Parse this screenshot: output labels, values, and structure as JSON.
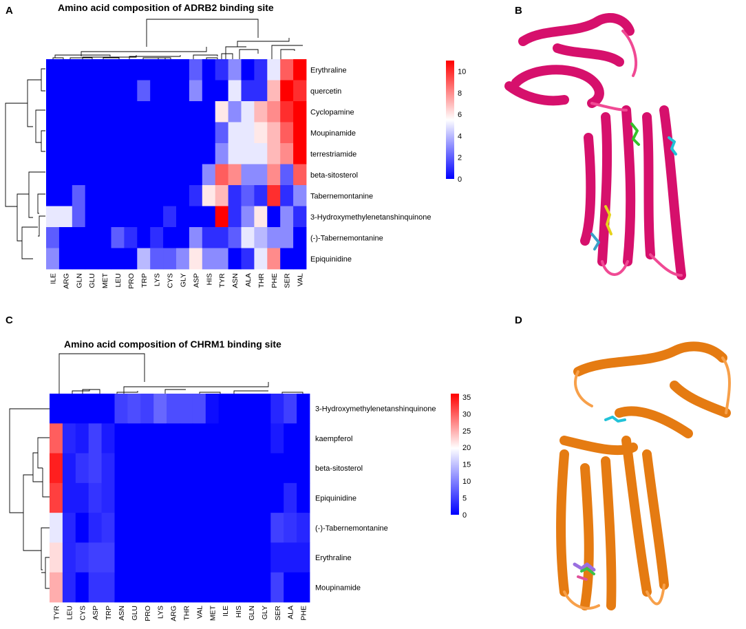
{
  "panels": {
    "A": "A",
    "B": "B",
    "C": "C",
    "D": "D"
  },
  "chart_data": [
    {
      "type": "heatmap",
      "panel": "A",
      "title": "Amino acid composition of ADRB2 binding site",
      "columns": [
        "ILE",
        "ARG",
        "GLN",
        "GLU",
        "MET",
        "LEU",
        "PRO",
        "TRP",
        "LYS",
        "CYS",
        "GLY",
        "ASP",
        "HIS",
        "TYR",
        "ASN",
        "ALA",
        "THR",
        "PHE",
        "SER",
        "VAL"
      ],
      "rows": [
        "Erythraline",
        "quercetin",
        "Cyclopamine",
        "Moupinamide",
        "terrestriamide",
        "beta-sitosterol",
        "Tabernemontanine",
        "3-Hydroxymethylenetanshinquinone",
        "(-)-Tabernemontanine",
        "Epiquinidine"
      ],
      "values": [
        [
          0,
          0,
          0,
          0,
          0,
          0,
          0,
          0,
          0,
          0,
          0,
          2,
          0,
          1,
          3,
          0,
          1,
          5,
          9,
          11
        ],
        [
          0,
          0,
          0,
          0,
          0,
          0,
          0,
          2,
          0,
          0,
          0,
          3,
          0,
          0,
          5,
          1,
          1,
          7,
          11,
          10
        ],
        [
          0,
          0,
          0,
          0,
          0,
          0,
          0,
          0,
          0,
          0,
          0,
          0,
          0,
          6,
          3,
          5,
          7,
          8,
          10,
          11
        ],
        [
          0,
          0,
          0,
          0,
          0,
          0,
          0,
          0,
          0,
          0,
          0,
          0,
          0,
          2,
          5,
          5,
          6,
          7,
          9,
          11
        ],
        [
          0,
          0,
          0,
          0,
          0,
          0,
          0,
          0,
          0,
          0,
          0,
          0,
          0,
          3,
          5,
          5,
          5,
          7,
          8,
          11
        ],
        [
          0,
          0,
          0,
          0,
          0,
          0,
          0,
          0,
          0,
          0,
          0,
          0,
          3,
          9,
          8,
          3,
          3,
          8,
          2,
          9
        ],
        [
          0,
          0,
          2,
          0,
          0,
          0,
          0,
          0,
          0,
          0,
          0,
          1,
          6,
          7,
          1,
          2,
          1,
          10,
          1,
          3
        ],
        [
          5,
          5,
          2,
          0,
          0,
          0,
          0,
          0,
          0,
          1,
          0,
          0,
          0,
          11,
          1,
          3,
          6,
          0,
          3,
          1
        ],
        [
          2,
          0,
          0,
          0,
          0,
          2,
          1,
          0,
          1,
          0,
          0,
          3,
          1,
          1,
          2,
          5,
          4,
          3,
          3,
          0
        ],
        [
          3,
          0,
          0,
          0,
          0,
          0,
          0,
          4,
          2,
          2,
          3,
          6,
          3,
          3,
          0,
          1,
          5,
          8,
          0,
          0
        ]
      ],
      "scale_ticks": [
        0,
        2,
        4,
        6,
        8,
        10
      ],
      "vmin": 0,
      "vmax": 11
    },
    {
      "type": "heatmap",
      "panel": "C",
      "title": "Amino acid composition of CHRM1 binding site",
      "columns": [
        "TYR",
        "LEU",
        "CYS",
        "ASP",
        "TRP",
        "ASN",
        "GLU",
        "PRO",
        "LYS",
        "ARG",
        "THR",
        "VAL",
        "MET",
        "ILE",
        "HIS",
        "GLN",
        "GLY",
        "SER",
        "ALA",
        "PHE"
      ],
      "rows": [
        "3-Hydroxymethylenetanshinquinone",
        "kaempferol",
        "beta-sitosterol",
        "Epiquinidine",
        "(-)-Tabernemontanine",
        "Erythraline",
        "Moupinamide"
      ],
      "values": [
        [
          0,
          0,
          0,
          0,
          0,
          5,
          6,
          5,
          8,
          6,
          6,
          6,
          1,
          0,
          0,
          0,
          0,
          3,
          5,
          0
        ],
        [
          30,
          3,
          2,
          5,
          2,
          0,
          0,
          0,
          0,
          0,
          0,
          0,
          0,
          0,
          0,
          0,
          0,
          2,
          0,
          0
        ],
        [
          34,
          2,
          4,
          5,
          3,
          0,
          0,
          0,
          0,
          0,
          0,
          0,
          0,
          0,
          0,
          0,
          0,
          0,
          0,
          0
        ],
        [
          32,
          2,
          2,
          4,
          3,
          0,
          0,
          0,
          0,
          0,
          0,
          0,
          0,
          0,
          0,
          0,
          0,
          0,
          3,
          0
        ],
        [
          18,
          3,
          0,
          3,
          4,
          0,
          0,
          0,
          0,
          0,
          0,
          0,
          0,
          0,
          0,
          0,
          0,
          5,
          4,
          3
        ],
        [
          22,
          3,
          4,
          5,
          5,
          0,
          0,
          0,
          0,
          0,
          0,
          0,
          0,
          0,
          0,
          0,
          0,
          2,
          2,
          2
        ],
        [
          25,
          3,
          0,
          4,
          4,
          0,
          0,
          0,
          0,
          0,
          0,
          0,
          0,
          0,
          0,
          0,
          0,
          5,
          0,
          0
        ]
      ],
      "scale_ticks": [
        0,
        5,
        10,
        15,
        20,
        25,
        30,
        35
      ],
      "vmin": 0,
      "vmax": 36
    }
  ],
  "structures": [
    {
      "panel": "B",
      "protein_color": "#d6106c"
    },
    {
      "panel": "D",
      "protein_color": "#e57b12"
    }
  ]
}
